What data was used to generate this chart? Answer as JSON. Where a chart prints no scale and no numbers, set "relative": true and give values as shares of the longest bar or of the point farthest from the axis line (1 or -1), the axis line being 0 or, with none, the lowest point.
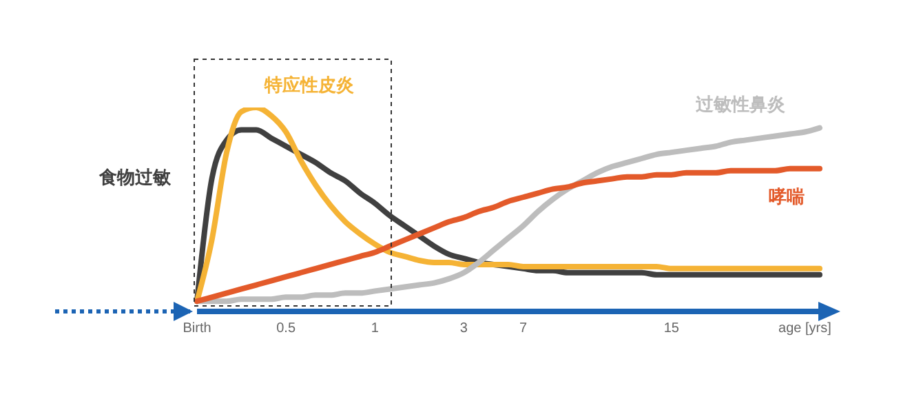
{
  "chart_data": {
    "type": "line",
    "relative": true,
    "categories": [
      "Birth",
      null,
      null,
      null,
      null,
      null,
      "0.5",
      null,
      null,
      null,
      null,
      null,
      "1",
      null,
      null,
      null,
      null,
      null,
      "3",
      null,
      null,
      null,
      "7",
      null,
      null,
      null,
      null,
      null,
      null,
      null,
      null,
      null,
      "15",
      null,
      null,
      null,
      null,
      null,
      null,
      null,
      null,
      "age [yrs]",
      null
    ],
    "series": [
      {
        "name": "食物过敏",
        "color": "#404040",
        "values": [
          0.05,
          0.65,
          0.84,
          0.89,
          0.89,
          0.85,
          0.81,
          0.77,
          0.73,
          0.68,
          0.64,
          0.58,
          0.53,
          0.47,
          0.42,
          0.37,
          0.32,
          0.28,
          0.26,
          0.24,
          0.23,
          0.22,
          0.21,
          0.2,
          0.2,
          0.19,
          0.19,
          0.19,
          0.19,
          0.19,
          0.19,
          0.18,
          0.18,
          0.18,
          0.18,
          0.18,
          0.18,
          0.18,
          0.18,
          0.18,
          0.18,
          0.18,
          0.18
        ]
      },
      {
        "name": "特应性皮炎",
        "color": "#f5b335",
        "values": [
          0.05,
          0.35,
          0.78,
          0.98,
          1,
          0.96,
          0.88,
          0.74,
          0.62,
          0.52,
          0.44,
          0.38,
          0.33,
          0.29,
          0.27,
          0.25,
          0.24,
          0.24,
          0.23,
          0.23,
          0.23,
          0.23,
          0.22,
          0.22,
          0.22,
          0.22,
          0.22,
          0.22,
          0.22,
          0.22,
          0.22,
          0.22,
          0.21,
          0.21,
          0.21,
          0.21,
          0.21,
          0.21,
          0.21,
          0.21,
          0.21,
          0.21,
          0.21
        ]
      },
      {
        "name": "过敏性鼻炎",
        "color": "#bdbdbd",
        "values": [
          0.05,
          0.05,
          0.05,
          0.06,
          0.06,
          0.06,
          0.07,
          0.07,
          0.08,
          0.08,
          0.09,
          0.09,
          0.1,
          0.11,
          0.12,
          0.13,
          0.14,
          0.16,
          0.19,
          0.24,
          0.3,
          0.36,
          0.42,
          0.49,
          0.55,
          0.6,
          0.64,
          0.68,
          0.71,
          0.73,
          0.75,
          0.77,
          0.78,
          0.79,
          0.8,
          0.81,
          0.83,
          0.84,
          0.85,
          0.86,
          0.87,
          0.88,
          0.9
        ]
      },
      {
        "name": "哮喘",
        "color": "#e35a2a",
        "values": [
          0.05,
          0.07,
          0.09,
          0.11,
          0.13,
          0.15,
          0.17,
          0.19,
          0.21,
          0.23,
          0.25,
          0.27,
          0.29,
          0.32,
          0.35,
          0.38,
          0.41,
          0.44,
          0.46,
          0.49,
          0.51,
          0.54,
          0.56,
          0.58,
          0.6,
          0.61,
          0.63,
          0.64,
          0.65,
          0.66,
          0.66,
          0.67,
          0.67,
          0.68,
          0.68,
          0.68,
          0.69,
          0.69,
          0.69,
          0.69,
          0.7,
          0.7,
          0.7
        ]
      }
    ]
  }
}
